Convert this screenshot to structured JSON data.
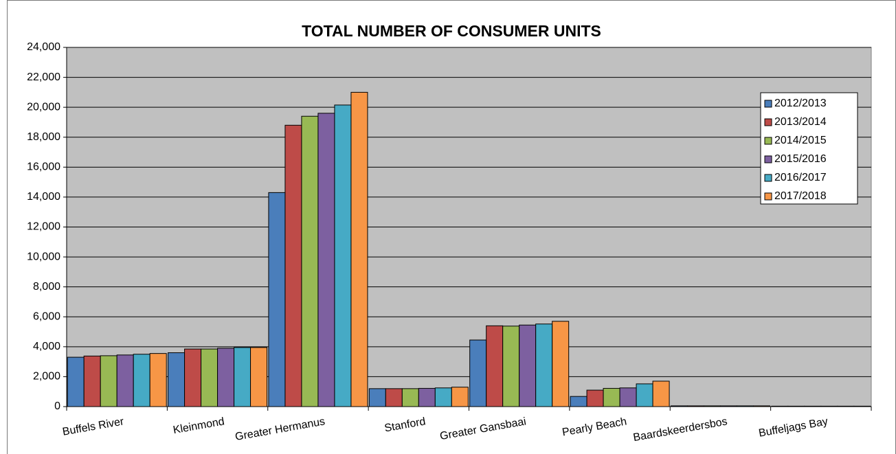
{
  "chart_data": {
    "type": "bar",
    "title": "TOTAL NUMBER OF CONSUMER UNITS",
    "categories": [
      "Buffels River",
      "Kleinmond",
      "Greater Hermanus",
      "Stanford",
      "Greater Gansbaai",
      "Pearly Beach",
      "Baardskeerdersbos",
      "Buffeljags Bay"
    ],
    "series": [
      {
        "name": "2012/2013",
        "color": "#4a7ebb",
        "values": [
          3300,
          3600,
          14300,
          1200,
          4450,
          680,
          50,
          30
        ]
      },
      {
        "name": "2013/2014",
        "color": "#be4b48",
        "values": [
          3380,
          3850,
          18800,
          1200,
          5400,
          1100,
          50,
          30
        ]
      },
      {
        "name": "2014/2015",
        "color": "#98b954",
        "values": [
          3400,
          3850,
          19400,
          1200,
          5380,
          1220,
          50,
          30
        ]
      },
      {
        "name": "2015/2016",
        "color": "#7d60a0",
        "values": [
          3450,
          3900,
          19600,
          1220,
          5450,
          1250,
          50,
          30
        ]
      },
      {
        "name": "2016/2017",
        "color": "#46aac5",
        "values": [
          3500,
          3950,
          20150,
          1250,
          5520,
          1520,
          50,
          30
        ]
      },
      {
        "name": "2017/2018",
        "color": "#f79646",
        "values": [
          3550,
          3950,
          21000,
          1300,
          5700,
          1700,
          50,
          30
        ]
      }
    ],
    "ylim": [
      0,
      24000
    ],
    "yticks": [
      0,
      {
        "value": 2000,
        "label": "2,000"
      },
      {
        "value": 4000,
        "label": "4,000"
      },
      {
        "value": 6000,
        "label": "6,000"
      },
      {
        "value": 8000,
        "label": "8,000"
      },
      {
        "value": 10000,
        "label": "10,000"
      },
      {
        "value": 12000,
        "label": "12,000"
      },
      {
        "value": 14000,
        "label": "14,000"
      },
      {
        "value": 16000,
        "label": "16,000"
      },
      {
        "value": 18000,
        "label": "18,000"
      },
      {
        "value": 20000,
        "label": "20,000"
      },
      {
        "value": 22000,
        "label": "22,000"
      },
      {
        "value": 24000,
        "label": "24,000"
      }
    ],
    "grid": true,
    "legend": "top-right",
    "plot_background": "#c0c0c0"
  }
}
